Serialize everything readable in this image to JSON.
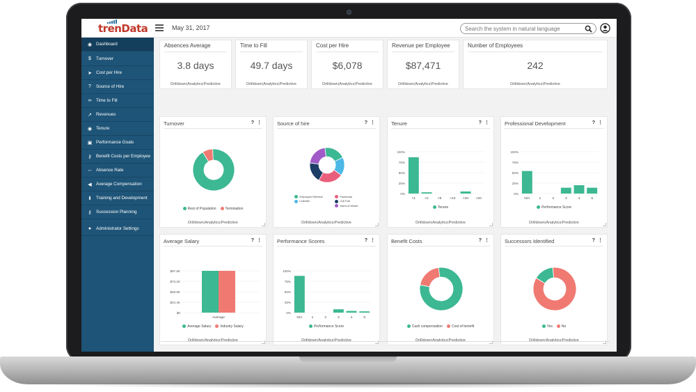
{
  "header": {
    "logo": "trenData",
    "date": "May 31, 2017",
    "search_placeholder": "Search the system in natural language"
  },
  "sidebar": {
    "items": [
      {
        "label": "Dashboard",
        "icon": "dashboard-icon"
      },
      {
        "label": "Turnover",
        "icon": "dollar-icon"
      },
      {
        "label": "Cost per Hire",
        "icon": "rocket-icon"
      },
      {
        "label": "Source of Hire",
        "icon": "question-icon"
      },
      {
        "label": "Time to Fill",
        "icon": "binoculars-icon"
      },
      {
        "label": "Revenues",
        "icon": "line-chart-icon"
      },
      {
        "label": "Tenure",
        "icon": "dashboard-icon"
      },
      {
        "label": "Performance Goals",
        "icon": "money-icon"
      },
      {
        "label": "Benefit Costs per Employee",
        "icon": "key-icon"
      },
      {
        "label": "Absence Rate",
        "icon": "arrows-icon"
      },
      {
        "label": "Average Compensation",
        "icon": "bullhorn-icon"
      },
      {
        "label": "Training and Development",
        "icon": "download-icon"
      },
      {
        "label": "Succession Planning",
        "icon": "key-icon"
      },
      {
        "label": "Administrator Settings",
        "icon": "user-icon"
      }
    ]
  },
  "links": {
    "drilldown": "Drilldown",
    "analytics": "Analytics",
    "predictive": "Predictive",
    "sep": "|"
  },
  "kpis": [
    {
      "title": "Absences Average",
      "value": "3.8 days"
    },
    {
      "title": "Time to Fill",
      "value": "49.7 days"
    },
    {
      "title": "Cost per Hire",
      "value": "$6,078"
    },
    {
      "title": "Revenue per Employee",
      "value": "$87,471"
    },
    {
      "title": "Number of Employees",
      "value": "242"
    }
  ],
  "card_tools": {
    "help": "?",
    "more": "⋮"
  },
  "colors": {
    "teal": "#3cb893",
    "salmon": "#f07a72",
    "sky": "#4cb8e6",
    "navy": "#1d3d66",
    "purple": "#a05bc8",
    "pink": "#ea5f7b",
    "sidebar": "#1e5477"
  },
  "charts": {
    "turnover": {
      "title": "Turnover",
      "chart_data": {
        "type": "pie",
        "labels": [
          "Rest of Population",
          "Termination"
        ],
        "values": [
          92,
          8
        ]
      }
    },
    "source_of_hire": {
      "title": "Source of hire",
      "chart_data": {
        "type": "pie",
        "labels": [
          "Employee Referral",
          "LinkedIn",
          "Facebook",
          "Job Fair",
          "Word of Mouth"
        ],
        "values": [
          20,
          17,
          23,
          19,
          21
        ]
      }
    },
    "tenure": {
      "title": "Tenure",
      "chart_data": {
        "type": "bar",
        "categories": [
          "<1",
          "<2",
          "<5",
          "<10",
          "<20",
          ">20"
        ],
        "values": [
          87,
          3,
          0,
          0,
          5,
          0
        ],
        "yticks": [
          "100%",
          "75%",
          "50%",
          "25%",
          "0%"
        ],
        "series_name": "Tenure",
        "ylim": [
          0,
          100
        ]
      }
    },
    "professional_development": {
      "title": "Professional Development",
      "chart_data": {
        "type": "bar",
        "categories": [
          "N/A",
          "1",
          "2",
          "3",
          "4",
          "5"
        ],
        "values": [
          54,
          0,
          0,
          14,
          20,
          14
        ],
        "yticks": [
          "100%",
          "75%",
          "50%",
          "25%",
          "0%"
        ],
        "series_name": "Performance Score",
        "ylim": [
          0,
          100
        ]
      }
    },
    "average_salary": {
      "title": "Average Salary",
      "chart_data": {
        "type": "bar",
        "categories": [
          "Average"
        ],
        "series": [
          {
            "name": "Average Salary",
            "values": [
              97.6
            ]
          },
          {
            "name": "Industry Salary",
            "values": [
              97.6
            ]
          }
        ],
        "yticks": [
          "$97.6K",
          "$73.2K",
          "$48.8K",
          "$24.4K",
          "$0"
        ],
        "ylim": [
          0,
          97.6
        ]
      }
    },
    "performance_scores": {
      "title": "Performance Scores",
      "chart_data": {
        "type": "bar",
        "categories": [
          "N/A",
          "1",
          "2",
          "3",
          "4",
          "5"
        ],
        "values": [
          88,
          0,
          0,
          8,
          4,
          3
        ],
        "yticks": [
          "100%",
          "75%",
          "50%",
          "25%",
          "0%"
        ],
        "series_name": "Performance Score",
        "ylim": [
          0,
          100
        ]
      }
    },
    "benefit_costs": {
      "title": "Benefit Costs",
      "chart_data": {
        "type": "pie",
        "labels": [
          "Cash compensation",
          "Cost of benefit"
        ],
        "values": [
          80,
          20
        ]
      }
    },
    "successors": {
      "title": "Successors Identified",
      "chart_data": {
        "type": "pie",
        "labels": [
          "Yes",
          "No"
        ],
        "values": [
          15,
          85
        ]
      }
    }
  }
}
